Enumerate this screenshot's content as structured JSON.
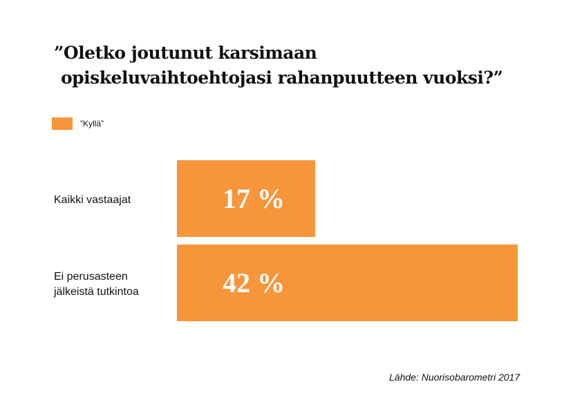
{
  "chart_data": {
    "type": "bar",
    "orientation": "horizontal",
    "title": [
      "”Oletko joutunut karsimaan",
      "opiskeluvaihtoehtojasi rahanpuutteen vuoksi?”"
    ],
    "categories": [
      "Kaikki vastaajat",
      "Ei perusasteen jälkeistä tutkintoa"
    ],
    "series": [
      {
        "name": "”Kyllä”",
        "color": "#f7953a",
        "values": [
          17,
          42
        ],
        "value_labels": [
          "17 %",
          "42 %"
        ]
      }
    ],
    "source": "Lähde:  Nuorisobarometri 2017"
  }
}
